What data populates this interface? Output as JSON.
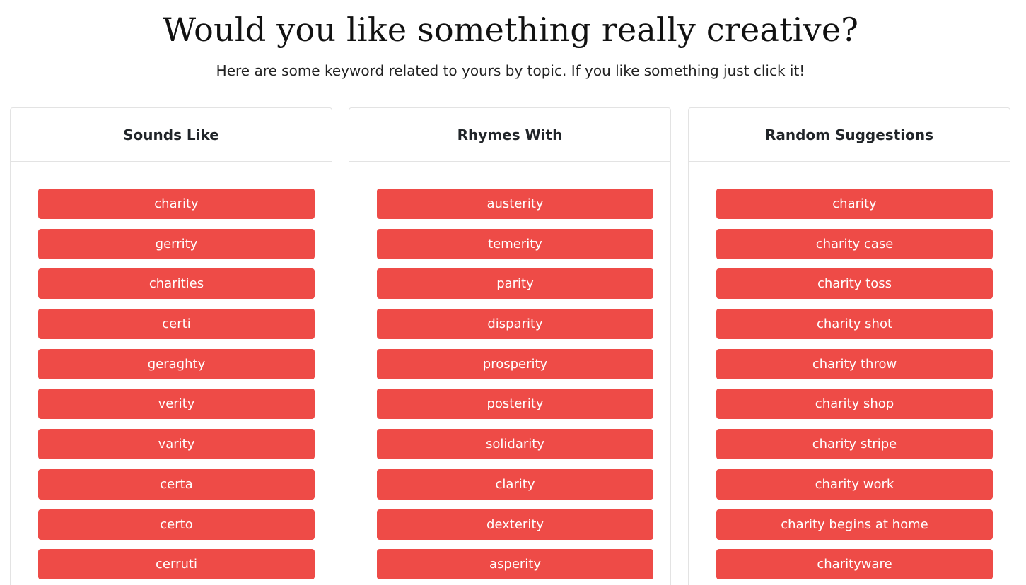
{
  "header": {
    "title": "Would you like something really creative?",
    "subtitle": "Here are some keyword related to yours by topic. If you like something just click it!"
  },
  "columns": [
    {
      "title": "Sounds Like",
      "items": [
        "charity",
        "gerrity",
        "charities",
        "certi",
        "geraghty",
        "verity",
        "varity",
        "certa",
        "certo",
        "cerruti"
      ]
    },
    {
      "title": "Rhymes With",
      "items": [
        "austerity",
        "temerity",
        "parity",
        "disparity",
        "prosperity",
        "posterity",
        "solidarity",
        "clarity",
        "dexterity",
        "asperity"
      ]
    },
    {
      "title": "Random Suggestions",
      "items": [
        "charity",
        "charity case",
        "charity toss",
        "charity shot",
        "charity throw",
        "charity shop",
        "charity stripe",
        "charity work",
        "charity begins at home",
        "charityware"
      ]
    }
  ],
  "colors": {
    "button_bg": "#ee4b47",
    "button_text": "#ffffff",
    "card_border": "#e3e3e3"
  }
}
